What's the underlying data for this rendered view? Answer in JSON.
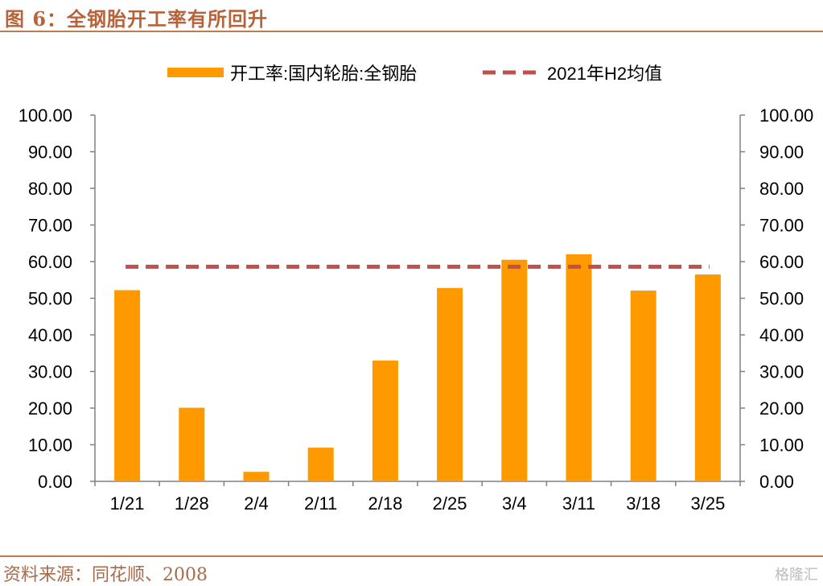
{
  "header": {
    "title": "图 6：全钢胎开工率有所回升"
  },
  "footer": {
    "source": "资料来源：同花顺、2008",
    "watermark": "格隆汇"
  },
  "colors": {
    "bar": "#FF9900",
    "avg_line": "#C0504D",
    "accent": "#B8623A"
  },
  "chart_data": {
    "type": "bar",
    "title": "",
    "xlabel": "",
    "ylabel": "",
    "categories": [
      "1/21",
      "1/28",
      "2/4",
      "2/11",
      "2/18",
      "2/25",
      "3/4",
      "3/11",
      "3/18",
      "3/25"
    ],
    "series": [
      {
        "name": "开工率:国内轮胎:全钢胎",
        "type": "bar",
        "values": [
          52.2,
          20.1,
          2.6,
          9.2,
          33.0,
          52.8,
          60.5,
          62.0,
          52.1,
          56.5
        ]
      },
      {
        "name": "2021年H2均值",
        "type": "line-dashed",
        "value": 58.6
      }
    ],
    "ylim": [
      0,
      100
    ],
    "yticks": [
      "0.00",
      "10.00",
      "20.00",
      "30.00",
      "40.00",
      "50.00",
      "60.00",
      "70.00",
      "80.00",
      "90.00",
      "100.00"
    ],
    "secondary_axis": true,
    "legend_position": "top",
    "grid": false
  }
}
